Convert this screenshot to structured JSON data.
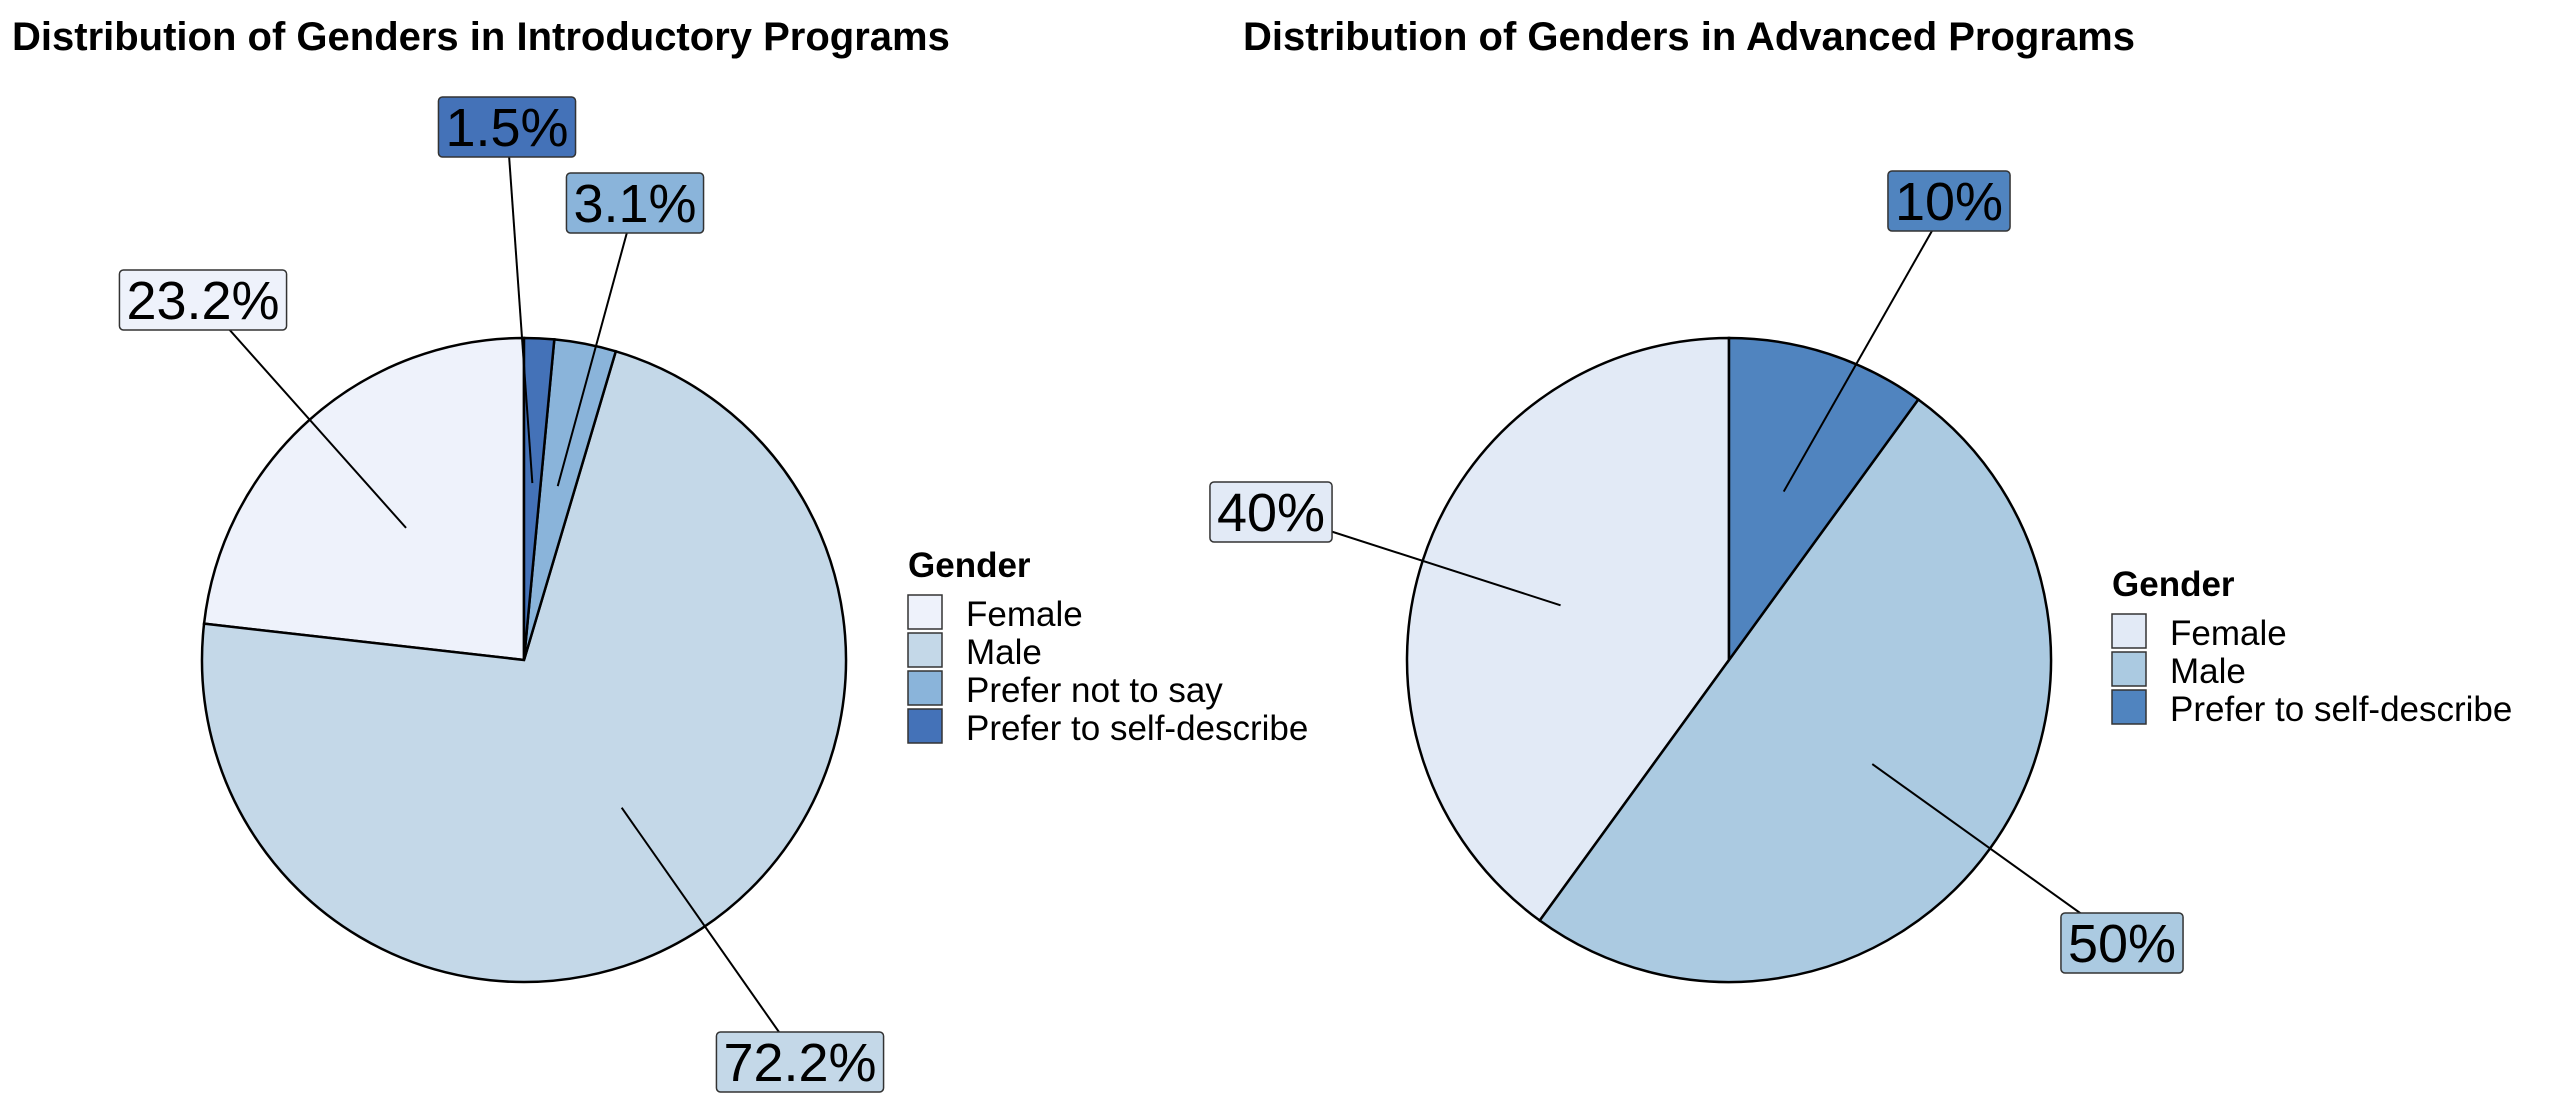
{
  "chart_data": [
    {
      "type": "pie",
      "title": "Distribution of Genders in Introductory Programs",
      "legend_title": "Gender",
      "legend_position": "right",
      "slices": [
        {
          "label": "Female",
          "value": 23.2,
          "display": "23.2%",
          "color": "#EEF2FB"
        },
        {
          "label": "Male",
          "value": 72.2,
          "display": "72.2%",
          "color": "#C4D8E8"
        },
        {
          "label": "Prefer not to say",
          "value": 3.1,
          "display": "3.1%",
          "color": "#8AB4DA"
        },
        {
          "label": "Prefer to self-describe",
          "value": 1.5,
          "display": "1.5%",
          "color": "#4472B8"
        }
      ]
    },
    {
      "type": "pie",
      "title": "Distribution of Genders in Advanced Programs",
      "legend_title": "Gender",
      "legend_position": "right",
      "slices": [
        {
          "label": "Female",
          "value": 40,
          "display": "40%",
          "color": "#E2EAF6"
        },
        {
          "label": "Male",
          "value": 50,
          "display": "50%",
          "color": "#ABCAE1"
        },
        {
          "label": "Prefer to self-describe",
          "value": 10,
          "display": "10%",
          "color": "#5084BF"
        }
      ]
    }
  ]
}
